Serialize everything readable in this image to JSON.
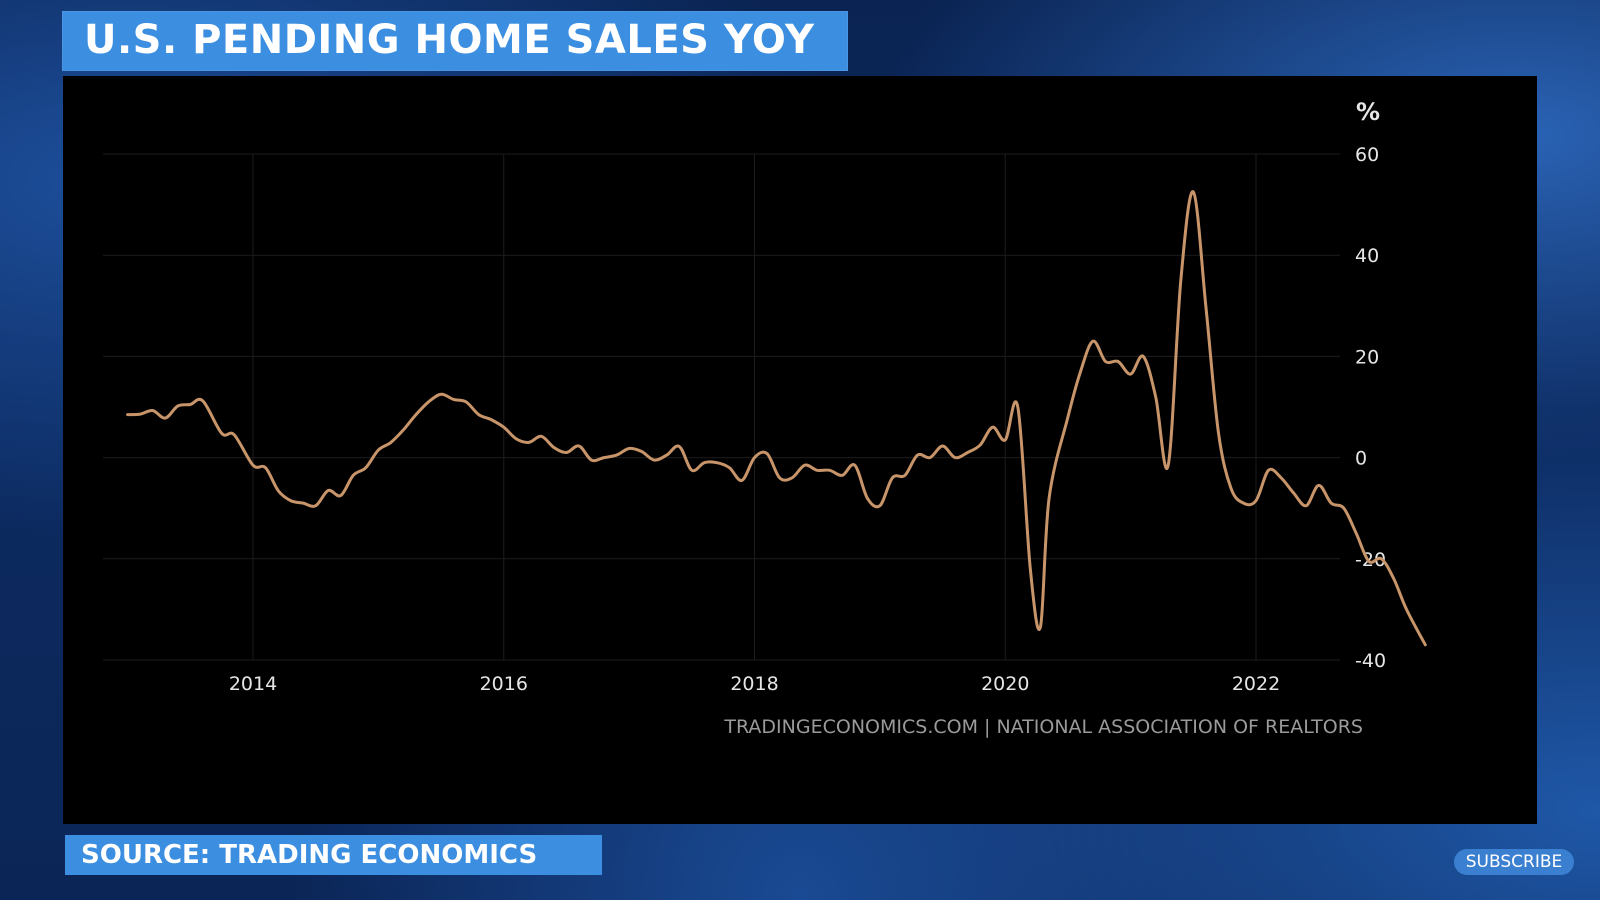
{
  "header": {
    "title": "U.S. PENDING HOME SALES YOY"
  },
  "footer": {
    "source": "SOURCE: TRADING ECONOMICS",
    "subscribe_label": "SUBSCRIBE"
  },
  "colors": {
    "banner": "#3b8ee0",
    "line": "#c8956a",
    "panel": "#000000"
  },
  "chart_data": {
    "type": "line",
    "title": "U.S. PENDING HOME SALES YOY",
    "ylabel": "%",
    "watermark": "TRADINGECONOMICS.COM | NATIONAL ASSOCIATION OF REALTORS",
    "ylim": [
      -40,
      60
    ],
    "yticks": [
      60,
      40,
      20,
      0,
      -20,
      -40
    ],
    "xlim": [
      2012.9,
      2023.0
    ],
    "xticks": [
      2014,
      2016,
      2018,
      2020,
      2022
    ],
    "grid": true,
    "series": [
      {
        "values": [
          [
            2013.0,
            8.5
          ],
          [
            2013.1,
            8.6
          ],
          [
            2013.2,
            9.3
          ],
          [
            2013.3,
            7.8
          ],
          [
            2013.4,
            10.2
          ],
          [
            2013.5,
            10.5
          ],
          [
            2013.6,
            11.2
          ],
          [
            2013.75,
            4.8
          ],
          [
            2013.85,
            4.5
          ],
          [
            2014.0,
            -1.5
          ],
          [
            2014.1,
            -2.0
          ],
          [
            2014.2,
            -6.5
          ],
          [
            2014.3,
            -8.5
          ],
          [
            2014.4,
            -9.0
          ],
          [
            2014.5,
            -9.5
          ],
          [
            2014.6,
            -6.5
          ],
          [
            2014.7,
            -7.5
          ],
          [
            2014.8,
            -3.5
          ],
          [
            2014.9,
            -2.0
          ],
          [
            2015.0,
            1.5
          ],
          [
            2015.1,
            3.0
          ],
          [
            2015.2,
            5.5
          ],
          [
            2015.3,
            8.5
          ],
          [
            2015.4,
            11.0
          ],
          [
            2015.5,
            12.5
          ],
          [
            2015.6,
            11.5
          ],
          [
            2015.7,
            11.0
          ],
          [
            2015.8,
            8.5
          ],
          [
            2015.9,
            7.5
          ],
          [
            2016.0,
            6.0
          ],
          [
            2016.1,
            3.7
          ],
          [
            2016.2,
            3.0
          ],
          [
            2016.3,
            4.2
          ],
          [
            2016.4,
            2.0
          ],
          [
            2016.5,
            1.0
          ],
          [
            2016.6,
            2.3
          ],
          [
            2016.7,
            -0.5
          ],
          [
            2016.8,
            0.0
          ],
          [
            2016.9,
            0.5
          ],
          [
            2017.0,
            1.8
          ],
          [
            2017.1,
            1.2
          ],
          [
            2017.2,
            -0.5
          ],
          [
            2017.3,
            0.5
          ],
          [
            2017.4,
            2.2
          ],
          [
            2017.5,
            -2.5
          ],
          [
            2017.6,
            -1.0
          ],
          [
            2017.7,
            -1.0
          ],
          [
            2017.8,
            -2.0
          ],
          [
            2017.9,
            -4.5
          ],
          [
            2018.0,
            0.0
          ],
          [
            2018.1,
            0.8
          ],
          [
            2018.2,
            -4.0
          ],
          [
            2018.3,
            -4.0
          ],
          [
            2018.4,
            -1.5
          ],
          [
            2018.5,
            -2.5
          ],
          [
            2018.6,
            -2.5
          ],
          [
            2018.7,
            -3.5
          ],
          [
            2018.8,
            -1.5
          ],
          [
            2018.9,
            -8.0
          ],
          [
            2019.0,
            -9.5
          ],
          [
            2019.1,
            -4.0
          ],
          [
            2019.2,
            -3.5
          ],
          [
            2019.3,
            0.5
          ],
          [
            2019.4,
            0.0
          ],
          [
            2019.5,
            2.3
          ],
          [
            2019.6,
            0.0
          ],
          [
            2019.7,
            1.0
          ],
          [
            2019.8,
            2.5
          ],
          [
            2019.9,
            6.0
          ],
          [
            2020.0,
            3.5
          ],
          [
            2020.1,
            10.0
          ],
          [
            2020.2,
            -22.0
          ],
          [
            2020.28,
            -33.5
          ],
          [
            2020.35,
            -8.0
          ],
          [
            2020.5,
            8.0
          ],
          [
            2020.6,
            17.0
          ],
          [
            2020.7,
            23.0
          ],
          [
            2020.8,
            19.0
          ],
          [
            2020.9,
            19.0
          ],
          [
            2021.0,
            16.5
          ],
          [
            2021.1,
            20.0
          ],
          [
            2021.2,
            12.0
          ],
          [
            2021.3,
            -1.5
          ],
          [
            2021.4,
            35.0
          ],
          [
            2021.5,
            52.5
          ],
          [
            2021.6,
            30.0
          ],
          [
            2021.7,
            5.0
          ],
          [
            2021.8,
            -6.0
          ],
          [
            2021.9,
            -9.0
          ],
          [
            2022.0,
            -8.5
          ],
          [
            2022.1,
            -2.5
          ],
          [
            2022.2,
            -4.0
          ],
          [
            2022.3,
            -7.0
          ],
          [
            2022.4,
            -9.5
          ],
          [
            2022.5,
            -5.5
          ],
          [
            2022.6,
            -9.0
          ],
          [
            2022.7,
            -10.0
          ],
          [
            2022.8,
            -15.0
          ],
          [
            2022.9,
            -20.5
          ],
          [
            2023.0,
            -20.0
          ],
          [
            2023.1,
            -24.0
          ],
          [
            2023.2,
            -30.0
          ],
          [
            2023.35,
            -37.0
          ]
        ]
      }
    ]
  }
}
